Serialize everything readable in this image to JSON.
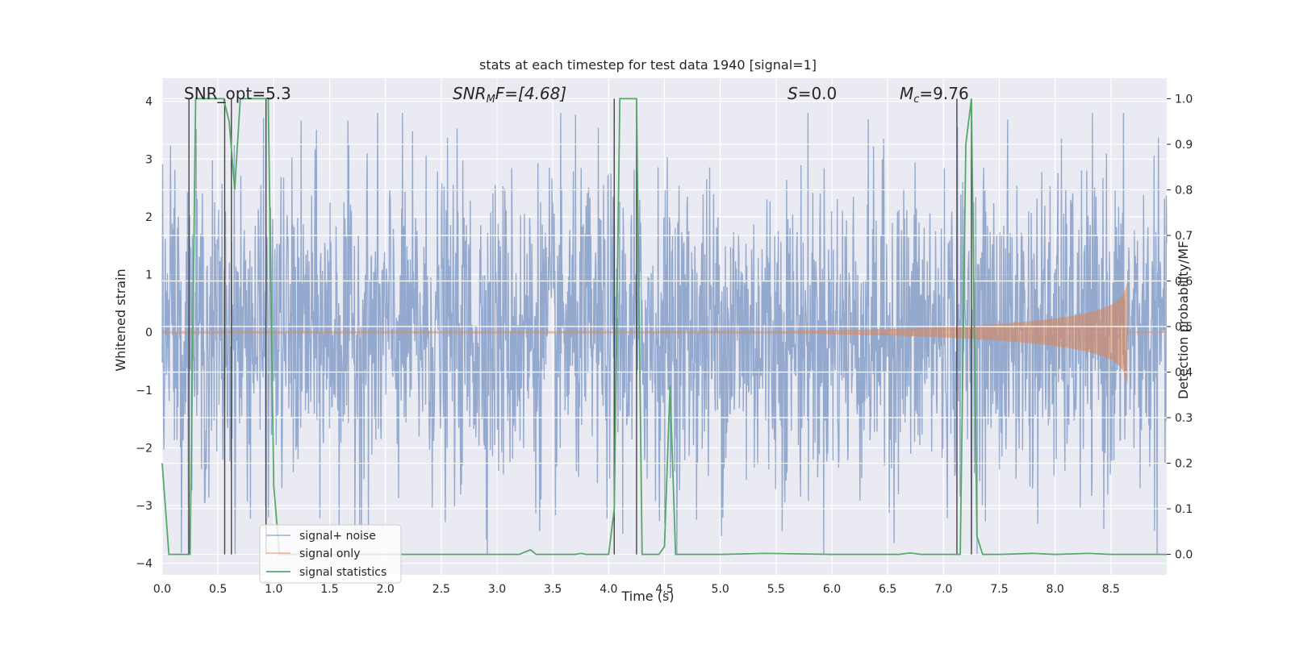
{
  "chart_data": {
    "type": "line",
    "title": "stats at each timestep for test data 1940 [signal=1]",
    "xlabel": "Time (s)",
    "ylabel": "Whitened strain",
    "ylabel_right": "Detection probability/MF",
    "xlim": [
      0.0,
      9.0
    ],
    "ylim": [
      -4.2,
      4.4
    ],
    "ylim_right": [
      -0.045,
      1.045
    ],
    "x_ticks": [
      "0.0",
      "0.5",
      "1.0",
      "1.5",
      "2.0",
      "2.5",
      "3.0",
      "3.5",
      "4.0",
      "4.5",
      "5.0",
      "5.5",
      "6.0",
      "6.5",
      "7.0",
      "7.5",
      "8.0",
      "8.5"
    ],
    "y_ticks": [
      "4",
      "3",
      "2",
      "1",
      "0",
      "−1",
      "−2",
      "−3",
      "−4"
    ],
    "y_right_ticks": [
      "1.0",
      "0.9",
      "0.8",
      "0.7",
      "0.6",
      "0.5",
      "0.4",
      "0.3",
      "0.2",
      "0.1",
      "0.0"
    ],
    "grid": true,
    "legend_placement": "lower-left",
    "annotations": {
      "snr_opt": "SNR_opt=5.3",
      "snr_mf_sym": "SNR",
      "snr_mf_sub": "M",
      "snr_mf_rest": "F=[4.68]",
      "s_sym": "S",
      "s_rest": "=0.0",
      "mc_sym": "M",
      "mc_sub": "c",
      "mc_rest": "=9.76"
    },
    "series": [
      {
        "name": "signal+ noise",
        "color": "#4c72b0",
        "description_values": "white noise approx. std 1.3, range about -3.8 to 3.8"
      },
      {
        "name": "signal only",
        "color": "#dd8452",
        "chirp_merger_time": 8.65,
        "chirp_peak_amplitude": 0.9
      },
      {
        "name": "signal statistics",
        "color": "#55a868",
        "x": [
          0.0,
          0.06,
          0.1,
          0.15,
          0.2,
          0.25,
          0.3,
          0.35,
          0.4,
          0.45,
          0.5,
          0.55,
          0.6,
          0.65,
          0.7,
          0.75,
          0.8,
          0.85,
          0.9,
          0.95,
          1.0,
          1.05,
          1.1,
          1.15,
          1.2,
          1.5,
          2.0,
          2.5,
          3.0,
          3.2,
          3.25,
          3.3,
          3.35,
          3.4,
          3.5,
          3.6,
          3.7,
          3.75,
          3.8,
          3.9,
          4.0,
          4.05,
          4.1,
          4.15,
          4.2,
          4.25,
          4.3,
          4.35,
          4.4,
          4.45,
          4.5,
          4.55,
          4.6,
          4.65,
          4.7,
          5.0,
          5.4,
          6.0,
          6.6,
          6.7,
          6.8,
          7.0,
          7.1,
          7.15,
          7.2,
          7.25,
          7.3,
          7.35,
          7.4,
          7.5,
          7.8,
          8.0,
          8.3,
          8.5,
          9.0
        ],
        "y": [
          0.2,
          0.0,
          0.0,
          0.0,
          0.0,
          0.0,
          1.0,
          1.0,
          1.0,
          1.0,
          1.0,
          1.0,
          0.95,
          0.8,
          1.0,
          1.0,
          1.0,
          1.0,
          1.0,
          1.0,
          0.15,
          0.0,
          0.0,
          0.0,
          0.0,
          0.0,
          0.0,
          0.0,
          0.0,
          0.0,
          0.005,
          0.01,
          0.0,
          0.0,
          0.0,
          0.0,
          0.0,
          0.002,
          0.0,
          0.0,
          0.0,
          0.1,
          1.0,
          1.0,
          1.0,
          1.0,
          0.0,
          0.0,
          0.0,
          0.0,
          0.017,
          0.37,
          0.0,
          0.0,
          0.0,
          0.0,
          0.002,
          0.0,
          0.0,
          0.003,
          0.0,
          0.0,
          0.0,
          0.0,
          0.9,
          1.0,
          0.04,
          0.0,
          0.0,
          0.0,
          0.002,
          0.0,
          0.002,
          0.0,
          0.0
        ]
      }
    ],
    "vertical_lines_x": [
      0.24,
      0.56,
      0.62,
      0.93,
      4.05,
      4.25,
      7.12,
      7.25
    ],
    "legend_box_color": "#ffffff",
    "plot_background": "#eaeaf2",
    "grid_color": "#ffffff",
    "vline_color": "#444444"
  }
}
